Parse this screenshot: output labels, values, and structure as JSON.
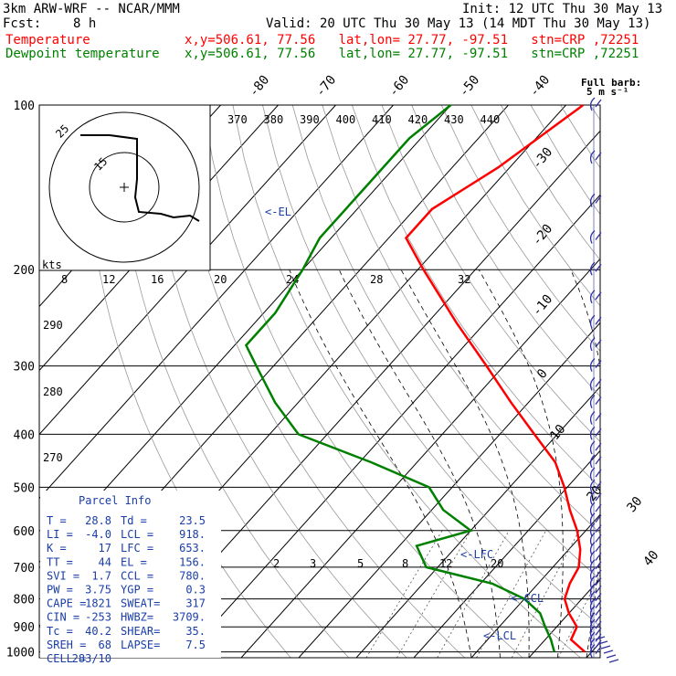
{
  "header": {
    "model": "3km ARW-WRF -- NCAR/MMM",
    "init": "Init: 12 UTC Thu 30 May 13",
    "fcst_label": "Fcst:",
    "fcst_value": "8 h",
    "valid": "Valid: 20 UTC Thu 30 May 13 (14 MDT Thu 30 May 13)",
    "lines": [
      {
        "name": "Temperature",
        "info": "x,y=506.61, 77.56   lat,lon= 27.77, -97.51   stn=CRP ,72251"
      },
      {
        "name": "Dewpoint temperature",
        "info": "x,y=506.61, 77.56   lat,lon= 27.77, -97.51   stn=CRP ,72251"
      }
    ]
  },
  "colors": {
    "temperature": "#ff0000",
    "dewpoint": "#008000",
    "barbs": "#3030a0",
    "parcel_title": "#1a3ea8"
  },
  "barb_label": {
    "line1": "Full barb:",
    "line2": "5 m s⁻¹"
  },
  "kts_label": "kts",
  "hodograph_ring_labels": [
    "25",
    "15"
  ],
  "markers": [
    "<-EL",
    "<-LFC",
    "<-CCL",
    "<-LCL"
  ],
  "parcel_info": {
    "title": "Parcel Info",
    "rows": [
      [
        "T  =",
        "28.8",
        "Td =",
        "23.5"
      ],
      [
        "LI =",
        "-4.0",
        "LCL =",
        "918."
      ],
      [
        "K  =",
        "17",
        "LFC =",
        "653."
      ],
      [
        "TT =",
        "44",
        "EL  =",
        "156."
      ],
      [
        "SVI =",
        "1.7",
        "CCL =",
        "780."
      ],
      [
        "PW =",
        "3.75",
        "YGP =",
        "0.3"
      ],
      [
        "CAPE =",
        "1821",
        "SWEAT=",
        "317"
      ],
      [
        "CIN =",
        "-253",
        "HWBZ=",
        "3709."
      ],
      [
        "Tc =",
        "40.2",
        "SHEAR=",
        "35."
      ],
      [
        "SREH =",
        "68",
        "LAPSE=",
        "7.5"
      ],
      [
        "CELL =",
        "283/10",
        "",
        ""
      ]
    ]
  },
  "chart_data": {
    "type": "line",
    "title": "",
    "pressure_levels": [
      100,
      200,
      300,
      400,
      500,
      600,
      700,
      800,
      900,
      1000
    ],
    "isotherm_labels": [
      "-80",
      "-70",
      "-60",
      "-50",
      "-40",
      "-30",
      "-20",
      "-10",
      "0",
      "10",
      "20",
      "30",
      "40"
    ],
    "theta_labels": [
      "370",
      "380",
      "390",
      "400",
      "410",
      "420",
      "430",
      "440"
    ],
    "theta_labels_low": [
      "290",
      "280",
      "270"
    ],
    "mixing_ratio_labels_upper": [
      "8",
      "12",
      "16",
      "20",
      "24",
      "28",
      "32"
    ],
    "mixing_ratio_labels_lower": [
      "2",
      "3",
      "5",
      "8",
      "12",
      "20"
    ],
    "series": [
      {
        "name": "Temperature",
        "points": [
          [
            100,
            -57
          ],
          [
            130,
            -62
          ],
          [
            155,
            -67
          ],
          [
            175,
            -67
          ],
          [
            200,
            -59
          ],
          [
            250,
            -45
          ],
          [
            300,
            -33
          ],
          [
            350,
            -23
          ],
          [
            400,
            -14
          ],
          [
            450,
            -6
          ],
          [
            500,
            -0.5
          ],
          [
            550,
            4
          ],
          [
            600,
            8.5
          ],
          [
            650,
            12
          ],
          [
            700,
            14.5
          ],
          [
            750,
            15.5
          ],
          [
            800,
            17
          ],
          [
            850,
            20
          ],
          [
            900,
            23.5
          ],
          [
            950,
            24.5
          ],
          [
            1000,
            28.8
          ]
        ]
      },
      {
        "name": "Dewpoint temperature",
        "points": [
          [
            100,
            -80
          ],
          [
            115,
            -82
          ],
          [
            140,
            -82
          ],
          [
            175,
            -82
          ],
          [
            200,
            -80
          ],
          [
            240,
            -78
          ],
          [
            275,
            -78
          ],
          [
            300,
            -73
          ],
          [
            350,
            -64
          ],
          [
            400,
            -55
          ],
          [
            450,
            -38
          ],
          [
            500,
            -24
          ],
          [
            550,
            -18
          ],
          [
            600,
            -10
          ],
          [
            640,
            -17
          ],
          [
            700,
            -12
          ],
          [
            750,
            2
          ],
          [
            800,
            10
          ],
          [
            850,
            15
          ],
          [
            900,
            18
          ],
          [
            950,
            21
          ],
          [
            1000,
            23.5
          ]
        ]
      }
    ],
    "wind_barbs_kt": [
      [
        100,
        10
      ],
      [
        150,
        10
      ],
      [
        200,
        10
      ],
      [
        300,
        10
      ],
      [
        400,
        5
      ],
      [
        500,
        5
      ],
      [
        600,
        5
      ],
      [
        700,
        5
      ],
      [
        800,
        5
      ],
      [
        900,
        5
      ],
      [
        950,
        15
      ],
      [
        1000,
        10
      ]
    ]
  }
}
